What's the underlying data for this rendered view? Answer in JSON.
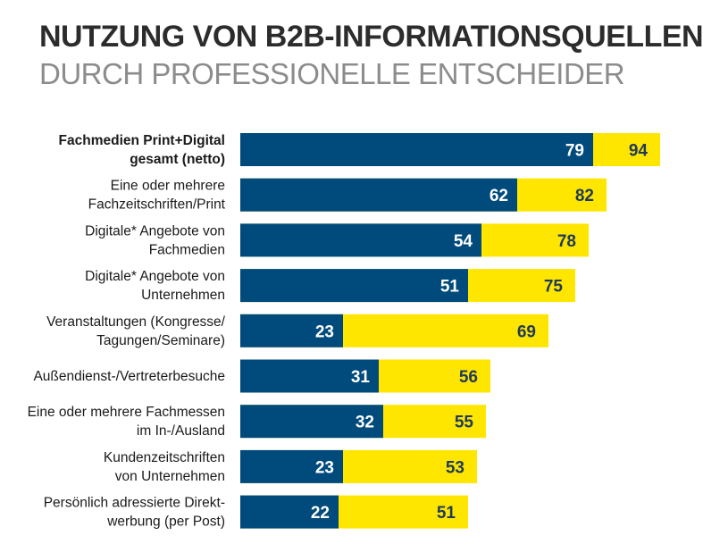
{
  "header": {
    "title": "NUTZUNG VON B2B-INFORMATIONSQUELLEN",
    "subtitle": "DURCH PROFESSIONELLE ENTSCHEIDER"
  },
  "colors": {
    "inner": "#004a7c",
    "outer": "#ffe600"
  },
  "chart_data": {
    "type": "bar",
    "orientation": "horizontal",
    "title": "NUTZUNG VON B2B-INFORMATIONSQUELLEN",
    "subtitle": "DURCH PROFESSIONELLE ENTSCHEIDER",
    "categories": [
      [
        "Fachmedien Print+Digital",
        "gesamt (netto)"
      ],
      [
        "Eine oder mehrere",
        "Fachzeitschriften/Print"
      ],
      [
        "Digitale* Angebote von",
        "Fachmedien"
      ],
      [
        "Digitale* Angebote von",
        "Unternehmen"
      ],
      [
        "Veranstaltungen (Kongresse/",
        "Tagungen/Seminare)"
      ],
      [
        "Außendienst-/Vertreterbesuche"
      ],
      [
        "Eine oder mehrere Fachmessen",
        "im In-/Ausland"
      ],
      [
        "Kundenzeitschriften",
        "von Unternehmen"
      ],
      [
        "Persönlich adressierte Direkt-",
        "werbung (per Post)"
      ]
    ],
    "bold_categories": [
      0
    ],
    "series": [
      {
        "name": "inner",
        "color": "#004a7c",
        "values": [
          79,
          62,
          54,
          51,
          23,
          31,
          32,
          23,
          22
        ]
      },
      {
        "name": "outer",
        "color": "#ffe600",
        "values": [
          94,
          82,
          78,
          75,
          69,
          56,
          55,
          53,
          51
        ]
      }
    ],
    "xlim": [
      0,
      100
    ],
    "grid": false,
    "legend": "none"
  }
}
